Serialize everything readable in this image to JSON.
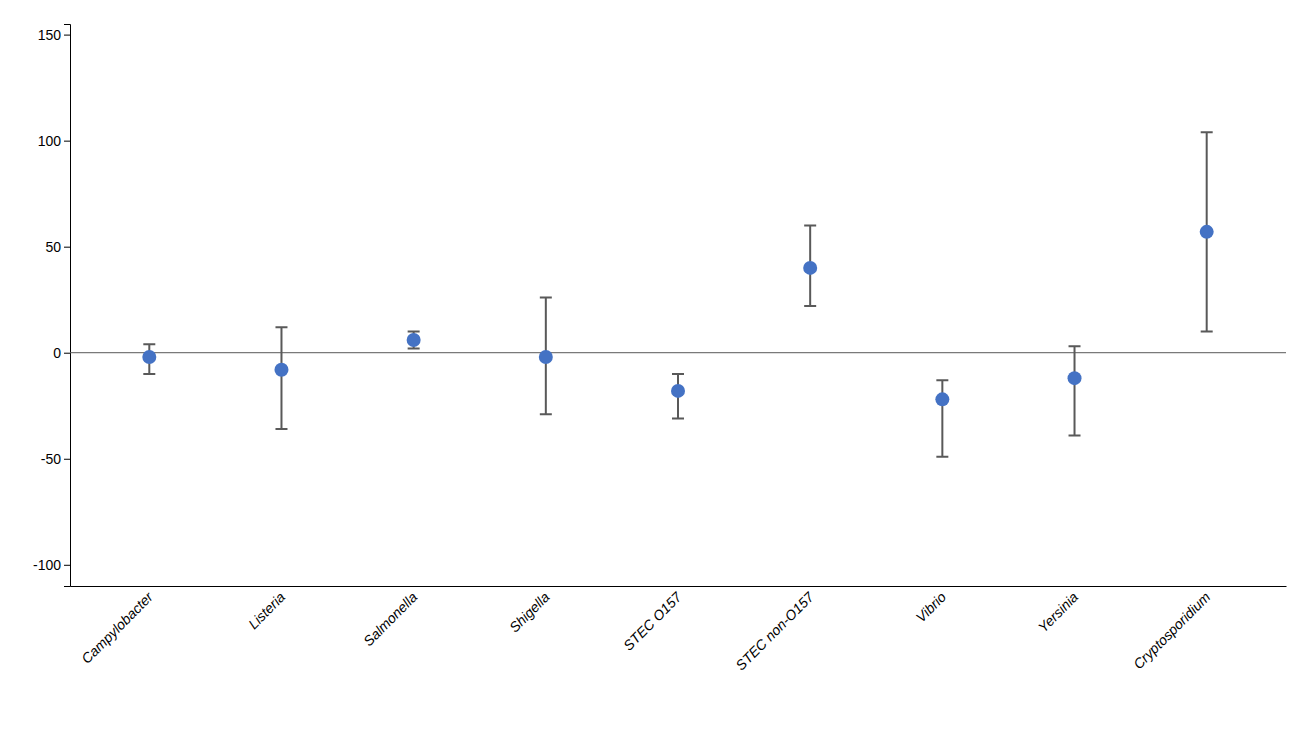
{
  "chart_data": {
    "type": "scatter",
    "categories": [
      "Campylobacter",
      "Listeria",
      "Salmonella",
      "Shigella",
      "STEC O157",
      "STEC non-O157",
      "Vibrio",
      "Yersinia",
      "Cryptosporidium"
    ],
    "values": [
      -2,
      -8,
      6,
      -2,
      -18,
      40,
      -22,
      -12,
      57
    ],
    "lower_errors": [
      8,
      28,
      4,
      27,
      13,
      18,
      27,
      27,
      47
    ],
    "upper_errors": [
      6,
      20,
      4,
      28,
      8,
      20,
      9,
      15,
      47
    ],
    "color": "#4472C4",
    "ylim": [
      -110,
      155
    ],
    "yticks": [
      -100,
      -50,
      0,
      50,
      100,
      150
    ],
    "grid": false
  }
}
